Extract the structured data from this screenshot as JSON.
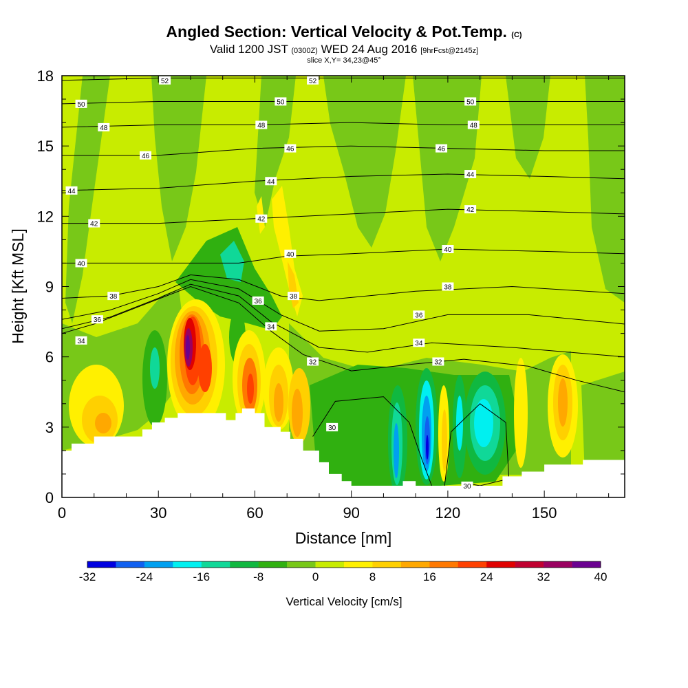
{
  "header": {
    "title": "Angled Section: Vertical Velocity & Pot.Temp.",
    "title_suffix": "(C)",
    "valid_prefix": "Valid 1200 JST",
    "valid_z": "(0300Z)",
    "valid_date": "WED 24 Aug 2016",
    "forecast": "[9hrFcst@2145z]",
    "slice": "slice X,Y= 34,23@45°"
  },
  "chart_data": {
    "type": "heatmap",
    "xlabel": "Distance [nm]",
    "ylabel": "Height [Kft MSL]",
    "xlim": [
      0,
      175
    ],
    "ylim": [
      0,
      18
    ],
    "xticks": [
      "0",
      "30",
      "60",
      "90",
      "120",
      "150"
    ],
    "yticks": [
      "0",
      "3",
      "6",
      "9",
      "12",
      "15",
      "18"
    ],
    "colorbar": {
      "title": "Vertical Velocity [cm/s]",
      "labels": [
        "-32",
        "-24",
        "-16",
        "-8",
        "0",
        "8",
        "16",
        "24",
        "32",
        "40"
      ],
      "colors": [
        "#0000e0",
        "#1060f0",
        "#00a0f0",
        "#00f0f0",
        "#10d898",
        "#10b840",
        "#30b010",
        "#78c818",
        "#c8ec00",
        "#fff000",
        "#ffd000",
        "#ffa800",
        "#ff7800",
        "#ff4000",
        "#e00000",
        "#c00030",
        "#9a0060",
        "#6a0090"
      ]
    },
    "vertical_velocity_features": [
      {
        "x": 39,
        "y": 6.2,
        "value": 40
      },
      {
        "x": 44,
        "y": 5.9,
        "value": 24
      },
      {
        "x": 58,
        "y": 4.8,
        "value": 24
      },
      {
        "x": 155,
        "y": 4.0,
        "value": 16
      },
      {
        "x": 104,
        "y": 2.5,
        "value": -16
      },
      {
        "x": 114,
        "y": 2.2,
        "value": -32
      },
      {
        "x": 121,
        "y": 3.2,
        "value": -16
      },
      {
        "x": 130,
        "y": 3.2,
        "value": -16
      },
      {
        "x": 29,
        "y": 5.5,
        "value": -16
      },
      {
        "x": 55,
        "y": 10.2,
        "value": -12
      }
    ],
    "theta_contours": [
      {
        "label": "30",
        "points": [
          [
            78,
            2.6
          ],
          [
            85,
            4.1
          ],
          [
            100,
            4.3
          ],
          [
            108,
            3.2
          ],
          [
            112,
            1.6
          ],
          [
            115,
            0.5
          ]
        ]
      },
      {
        "label": "30",
        "points": [
          [
            119,
            0.5
          ],
          [
            121,
            2.8
          ],
          [
            130,
            4.0
          ],
          [
            138,
            3.2
          ],
          [
            139,
            0.8
          ],
          [
            130,
            0.5
          ],
          [
            126,
            0.6
          ]
        ]
      },
      {
        "label": "32",
        "points": [
          [
            0,
            7.0
          ],
          [
            10,
            7.4
          ],
          [
            25,
            8.2
          ],
          [
            40,
            9.0
          ],
          [
            55,
            8.3
          ],
          [
            65,
            7.1
          ],
          [
            75,
            6.1
          ],
          [
            90,
            5.4
          ],
          [
            110,
            5.7
          ],
          [
            125,
            5.9
          ],
          [
            145,
            5.6
          ],
          [
            160,
            5.0
          ],
          [
            175,
            4.5
          ]
        ]
      },
      {
        "label": "34",
        "points": [
          [
            0,
            7.2
          ],
          [
            15,
            7.7
          ],
          [
            30,
            8.5
          ],
          [
            40,
            9.1
          ],
          [
            55,
            8.6
          ],
          [
            65,
            7.5
          ],
          [
            80,
            6.4
          ],
          [
            95,
            6.2
          ],
          [
            115,
            6.6
          ],
          [
            140,
            6.4
          ],
          [
            175,
            6.0
          ]
        ]
      },
      {
        "label": "36",
        "points": [
          [
            0,
            7.6
          ],
          [
            15,
            8.0
          ],
          [
            30,
            8.7
          ],
          [
            40,
            9.3
          ],
          [
            55,
            8.9
          ],
          [
            68,
            7.8
          ],
          [
            80,
            7.1
          ],
          [
            100,
            7.2
          ],
          [
            120,
            7.8
          ],
          [
            145,
            7.8
          ],
          [
            175,
            7.4
          ]
        ]
      },
      {
        "label": "38",
        "points": [
          [
            0,
            8.5
          ],
          [
            15,
            8.6
          ],
          [
            30,
            9.0
          ],
          [
            40,
            9.5
          ],
          [
            55,
            9.3
          ],
          [
            68,
            8.6
          ],
          [
            80,
            8.4
          ],
          [
            110,
            8.8
          ],
          [
            140,
            9.0
          ],
          [
            175,
            8.7
          ]
        ]
      },
      {
        "label": "40",
        "points": [
          [
            0,
            10.0
          ],
          [
            20,
            10.0
          ],
          [
            40,
            10.0
          ],
          [
            55,
            10.0
          ],
          [
            70,
            10.3
          ],
          [
            90,
            10.4
          ],
          [
            120,
            10.6
          ],
          [
            150,
            10.5
          ],
          [
            175,
            10.4
          ]
        ]
      },
      {
        "label": "42",
        "points": [
          [
            0,
            11.7
          ],
          [
            30,
            11.7
          ],
          [
            60,
            11.9
          ],
          [
            90,
            12.1
          ],
          [
            120,
            12.3
          ],
          [
            150,
            12.2
          ],
          [
            175,
            12.1
          ]
        ]
      },
      {
        "label": "44",
        "points": [
          [
            0,
            13.1
          ],
          [
            30,
            13.2
          ],
          [
            60,
            13.5
          ],
          [
            90,
            13.7
          ],
          [
            120,
            13.8
          ],
          [
            150,
            13.7
          ],
          [
            175,
            13.6
          ]
        ]
      },
      {
        "label": "46",
        "points": [
          [
            0,
            14.6
          ],
          [
            30,
            14.6
          ],
          [
            60,
            14.9
          ],
          [
            90,
            15.0
          ],
          [
            120,
            14.9
          ],
          [
            150,
            14.8
          ],
          [
            175,
            14.8
          ]
        ]
      },
      {
        "label": "48",
        "points": [
          [
            0,
            15.8
          ],
          [
            30,
            15.9
          ],
          [
            60,
            15.9
          ],
          [
            90,
            16.0
          ],
          [
            120,
            15.9
          ],
          [
            150,
            15.9
          ],
          [
            175,
            15.9
          ]
        ]
      },
      {
        "label": "50",
        "points": [
          [
            0,
            16.8
          ],
          [
            30,
            16.9
          ],
          [
            60,
            16.9
          ],
          [
            90,
            16.9
          ],
          [
            120,
            16.9
          ],
          [
            150,
            16.9
          ],
          [
            175,
            16.9
          ]
        ]
      },
      {
        "label": "52",
        "points": [
          [
            0,
            17.8
          ],
          [
            30,
            17.9
          ],
          [
            60,
            17.9
          ],
          [
            90,
            17.9
          ],
          [
            120,
            17.9
          ],
          [
            150,
            17.9
          ],
          [
            175,
            17.9
          ]
        ]
      }
    ],
    "contour_labels": [
      {
        "text": "52",
        "x": 32,
        "y": 17.8
      },
      {
        "text": "52",
        "x": 78,
        "y": 17.8
      },
      {
        "text": "50",
        "x": 6,
        "y": 16.8
      },
      {
        "text": "50",
        "x": 68,
        "y": 16.9
      },
      {
        "text": "50",
        "x": 127,
        "y": 16.9
      },
      {
        "text": "48",
        "x": 13,
        "y": 15.8
      },
      {
        "text": "48",
        "x": 62,
        "y": 15.9
      },
      {
        "text": "48",
        "x": 128,
        "y": 15.9
      },
      {
        "text": "46",
        "x": 26,
        "y": 14.6
      },
      {
        "text": "46",
        "x": 71,
        "y": 14.9
      },
      {
        "text": "46",
        "x": 118,
        "y": 14.9
      },
      {
        "text": "44",
        "x": 3,
        "y": 13.1
      },
      {
        "text": "44",
        "x": 65,
        "y": 13.5
      },
      {
        "text": "44",
        "x": 127,
        "y": 13.8
      },
      {
        "text": "42",
        "x": 10,
        "y": 11.7
      },
      {
        "text": "42",
        "x": 62,
        "y": 11.9
      },
      {
        "text": "42",
        "x": 127,
        "y": 12.3
      },
      {
        "text": "40",
        "x": 6,
        "y": 10.0
      },
      {
        "text": "40",
        "x": 71,
        "y": 10.4
      },
      {
        "text": "40",
        "x": 120,
        "y": 10.6
      },
      {
        "text": "38",
        "x": 16,
        "y": 8.6
      },
      {
        "text": "38",
        "x": 72,
        "y": 8.6
      },
      {
        "text": "38",
        "x": 120,
        "y": 9.0
      },
      {
        "text": "36",
        "x": 11,
        "y": 7.6
      },
      {
        "text": "36",
        "x": 61,
        "y": 8.4
      },
      {
        "text": "36",
        "x": 111,
        "y": 7.8
      },
      {
        "text": "34",
        "x": 6,
        "y": 6.7
      },
      {
        "text": "34",
        "x": 65,
        "y": 7.3
      },
      {
        "text": "34",
        "x": 111,
        "y": 6.6
      },
      {
        "text": "32",
        "x": 78,
        "y": 5.8
      },
      {
        "text": "32",
        "x": 117,
        "y": 5.8
      },
      {
        "text": "30",
        "x": 84,
        "y": 3.0
      },
      {
        "text": "30",
        "x": 126,
        "y": 0.5
      }
    ],
    "terrain": [
      [
        0,
        2.0
      ],
      [
        3,
        2.0
      ],
      [
        3,
        2.3
      ],
      [
        10,
        2.3
      ],
      [
        10,
        2.6
      ],
      [
        25,
        2.6
      ],
      [
        25,
        2.9
      ],
      [
        28,
        2.9
      ],
      [
        28,
        3.2
      ],
      [
        32,
        3.2
      ],
      [
        32,
        3.4
      ],
      [
        36,
        3.4
      ],
      [
        36,
        3.6
      ],
      [
        51,
        3.6
      ],
      [
        51,
        3.3
      ],
      [
        54,
        3.3
      ],
      [
        54,
        3.6
      ],
      [
        56,
        3.6
      ],
      [
        56,
        3.8
      ],
      [
        60,
        3.8
      ],
      [
        60,
        3.6
      ],
      [
        63,
        3.6
      ],
      [
        63,
        3.0
      ],
      [
        68,
        3.0
      ],
      [
        68,
        2.8
      ],
      [
        71,
        2.8
      ],
      [
        71,
        2.5
      ],
      [
        75,
        2.5
      ],
      [
        75,
        2.0
      ],
      [
        80,
        2.0
      ],
      [
        80,
        1.5
      ],
      [
        83,
        1.5
      ],
      [
        83,
        1.0
      ],
      [
        87,
        1.0
      ],
      [
        87,
        0.7
      ],
      [
        90,
        0.7
      ],
      [
        90,
        0.5
      ],
      [
        106,
        0.5
      ],
      [
        106,
        0.7
      ],
      [
        110,
        0.7
      ],
      [
        110,
        0.5
      ],
      [
        137,
        0.5
      ],
      [
        137,
        0.9
      ],
      [
        143,
        0.9
      ],
      [
        143,
        1.1
      ],
      [
        150,
        1.1
      ],
      [
        150,
        1.4
      ],
      [
        162,
        1.4
      ],
      [
        162,
        1.6
      ],
      [
        175,
        1.6
      ]
    ]
  }
}
